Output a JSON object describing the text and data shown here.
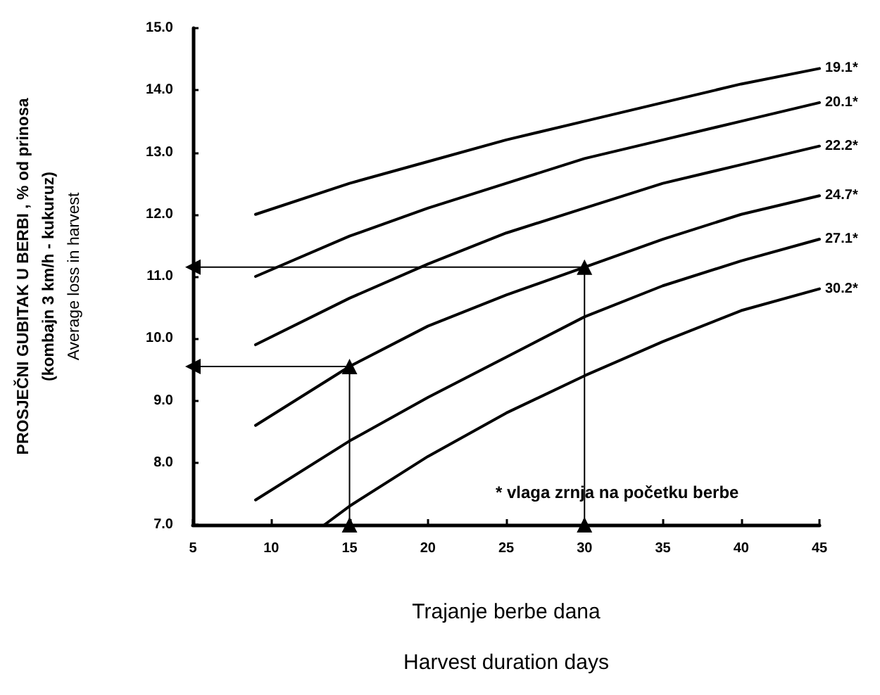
{
  "chart_data": {
    "type": "line",
    "xlabel": "Trajanje berbe dana\nHarvest duration days",
    "ylabel": "PROSJEČNI GUBITAK U BERBI , % od prinosa\n(kombajn 3 km/h - kukuruz)\nAverage loss in harvest",
    "annotations": [
      "* vlaga zrnja na početku berbe"
    ],
    "xlim": [
      5,
      45
    ],
    "xticks": [
      5,
      10,
      15,
      20,
      25,
      30,
      35,
      40,
      45
    ],
    "ylim": [
      7,
      15
    ],
    "yticks": [
      {
        "value": 7,
        "label": "7.0"
      },
      {
        "value": 8,
        "label": "8.0"
      },
      {
        "value": 9,
        "label": "9.0"
      },
      {
        "value": 10,
        "label": "10.0"
      },
      {
        "value": 11,
        "label": "11.0"
      },
      {
        "value": 12,
        "label": "12.0"
      },
      {
        "value": 13,
        "label": "13.0"
      },
      {
        "value": 14,
        "label": "14.0"
      },
      {
        "value": 15,
        "label": "15.0"
      }
    ],
    "grid": false,
    "legend": false,
    "marker": "none",
    "line_style": "solid",
    "series": [
      {
        "name": "19.1*",
        "color": "#000000",
        "x": [
          9,
          15,
          20,
          25,
          30,
          35,
          40,
          45
        ],
        "values": [
          12.0,
          12.5,
          12.85,
          13.2,
          13.5,
          13.8,
          14.1,
          14.35
        ]
      },
      {
        "name": "20.1*",
        "color": "#000000",
        "x": [
          9,
          15,
          20,
          25,
          30,
          35,
          40,
          45
        ],
        "values": [
          11.0,
          11.65,
          12.1,
          12.5,
          12.9,
          13.2,
          13.5,
          13.8
        ]
      },
      {
        "name": "22.2*",
        "color": "#000000",
        "x": [
          9,
          15,
          20,
          25,
          30,
          35,
          40,
          45
        ],
        "values": [
          9.9,
          10.65,
          11.2,
          11.7,
          12.1,
          12.5,
          12.8,
          13.1
        ]
      },
      {
        "name": "24.7*",
        "color": "#000000",
        "x": [
          9,
          15,
          20,
          25,
          30,
          35,
          40,
          45
        ],
        "values": [
          8.6,
          9.55,
          10.2,
          10.7,
          11.15,
          11.6,
          12.0,
          12.3
        ]
      },
      {
        "name": "27.1*",
        "color": "#000000",
        "x": [
          9,
          15,
          20,
          25,
          30,
          35,
          40,
          45
        ],
        "values": [
          7.4,
          8.35,
          9.05,
          9.7,
          10.35,
          10.85,
          11.25,
          11.6
        ]
      },
      {
        "name": "30.2*",
        "color": "#000000",
        "x": [
          13.4,
          15,
          20,
          25,
          30,
          35,
          40,
          45
        ],
        "values": [
          7.0,
          7.3,
          8.1,
          8.8,
          9.4,
          9.95,
          10.45,
          10.8
        ]
      },
      {
        "color": "#000000",
        "marker": "triangle",
        "x": [
          15,
          15,
          5
        ],
        "values": [
          7,
          9.55,
          9.55
        ]
      },
      {
        "color": "#000000",
        "marker": "triangle",
        "x": [
          30,
          30,
          5
        ],
        "values": [
          7,
          11.15,
          11.15
        ]
      }
    ]
  }
}
